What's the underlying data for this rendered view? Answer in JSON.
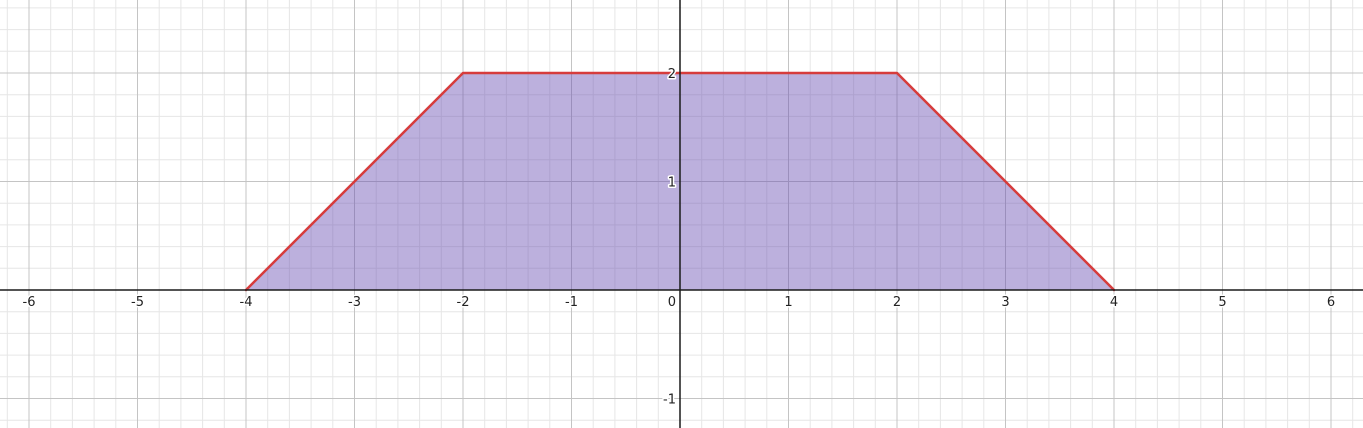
{
  "chart_data": {
    "type": "area",
    "title": "",
    "xlabel": "",
    "ylabel": "",
    "xlim": [
      -6.2,
      6.3
    ],
    "ylim": [
      -1.25,
      2.65
    ],
    "grid": true,
    "x_ticks": [
      {
        "value": -6,
        "label": "-6"
      },
      {
        "value": -5,
        "label": "-5"
      },
      {
        "value": -4,
        "label": "-4"
      },
      {
        "value": -3,
        "label": "-3"
      },
      {
        "value": -2,
        "label": "-2"
      },
      {
        "value": -1,
        "label": "-1"
      },
      {
        "value": 1,
        "label": "1"
      },
      {
        "value": 2,
        "label": "2"
      },
      {
        "value": 3,
        "label": "3"
      },
      {
        "value": 4,
        "label": "4"
      },
      {
        "value": 5,
        "label": "5"
      },
      {
        "value": 6,
        "label": "6"
      }
    ],
    "y_ticks": [
      {
        "value": -1,
        "label": "-1"
      },
      {
        "value": 1,
        "label": "1"
      },
      {
        "value": 2,
        "label": "2"
      }
    ],
    "origin_label": "0",
    "series": [
      {
        "points": [
          [
            -4,
            0
          ],
          [
            -2,
            2
          ],
          [
            2,
            2
          ],
          [
            4,
            0
          ]
        ],
        "fill_color": "#6a4fb3",
        "fill_opacity": 0.45,
        "stroke_color": "#d63c3c"
      }
    ]
  }
}
